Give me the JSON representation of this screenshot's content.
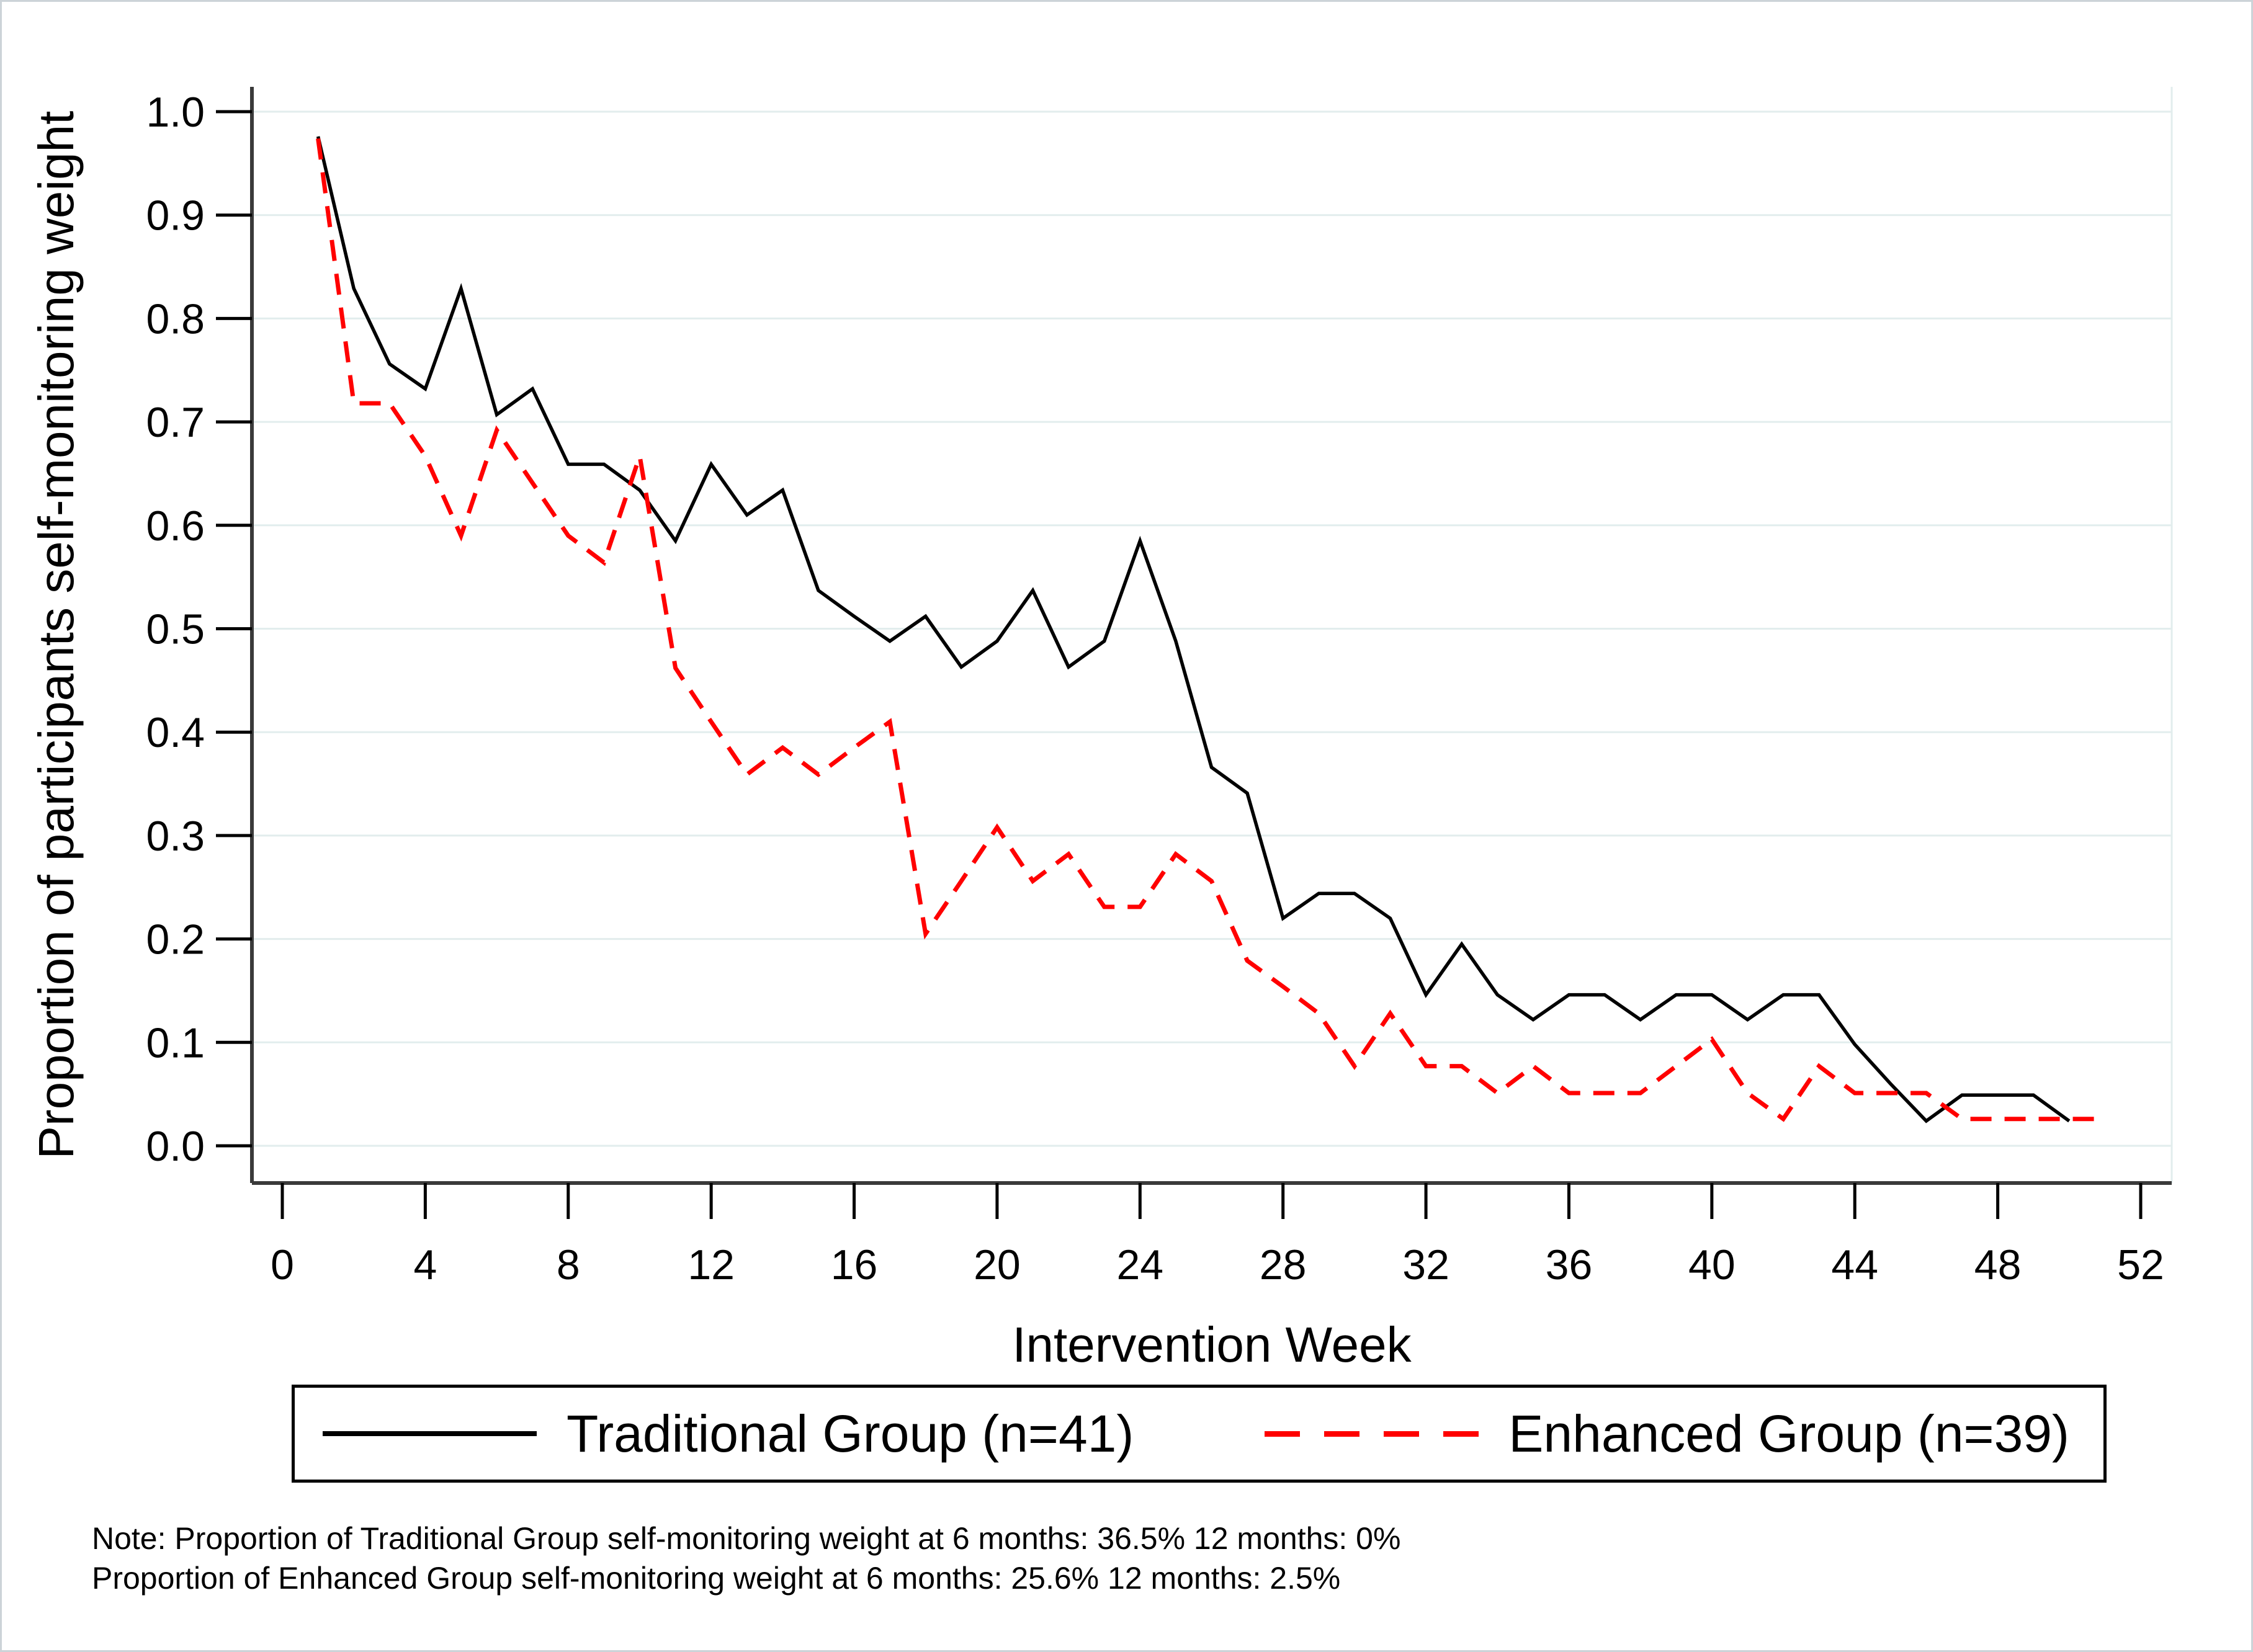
{
  "legend": {
    "items": [
      {
        "label": "Traditional Group (n=41)",
        "style": "solid",
        "color": "#000000"
      },
      {
        "label": "Enhanced Group (n=39)",
        "style": "dashed",
        "color": "#ff0000"
      }
    ]
  },
  "notes": {
    "line1": "Note: Proportion of Traditional Group self-monitoring weight at 6 months: 36.5% 12 months: 0%",
    "line2": "Proportion of Enhanced Group self-monitoring weight at 6 months: 25.6% 12 months: 2.5%"
  },
  "chart_data": {
    "type": "line",
    "title": "",
    "xlabel": "Intervention Week",
    "ylabel": "Proportion of participants self-monitoring weight",
    "xlim": [
      0,
      52
    ],
    "ylim": [
      0.0,
      1.0
    ],
    "x_ticks": [
      0,
      4,
      8,
      12,
      16,
      20,
      24,
      28,
      32,
      36,
      40,
      44,
      48,
      52
    ],
    "y_ticks": [
      "0.0",
      "0.1",
      "0.2",
      "0.3",
      "0.4",
      "0.5",
      "0.6",
      "0.7",
      "0.8",
      "0.9",
      "1.0"
    ],
    "grid": true,
    "grid_color": "#e2eded",
    "axis_color": "#3a3a3a",
    "legend_position": "bottom",
    "series": [
      {
        "name": "Traditional Group (n=41)",
        "color": "#000000",
        "dash": "solid",
        "x": [
          1,
          2,
          3,
          4,
          5,
          6,
          7,
          8,
          9,
          10,
          11,
          12,
          13,
          14,
          15,
          16,
          17,
          18,
          19,
          20,
          21,
          22,
          23,
          24,
          25,
          26,
          27,
          28,
          29,
          30,
          31,
          32,
          33,
          34,
          35,
          36,
          37,
          38,
          39,
          40,
          41,
          42,
          43,
          44,
          45,
          46,
          47,
          48,
          49,
          50
        ],
        "y": [
          0.976,
          0.829,
          0.756,
          0.732,
          0.829,
          0.707,
          0.732,
          0.659,
          0.659,
          0.634,
          0.585,
          0.659,
          0.61,
          0.634,
          0.537,
          0.512,
          0.488,
          0.512,
          0.463,
          0.488,
          0.537,
          0.463,
          0.488,
          0.585,
          0.488,
          0.366,
          0.341,
          0.22,
          0.244,
          0.244,
          0.22,
          0.146,
          0.195,
          0.146,
          0.122,
          0.146,
          0.146,
          0.122,
          0.146,
          0.146,
          0.122,
          0.146,
          0.146,
          0.098,
          0.06,
          0.024,
          0.049,
          0.049,
          0.049,
          0.024
        ]
      },
      {
        "name": "Enhanced Group (n=39)",
        "color": "#ff0000",
        "dash": "dashed",
        "x": [
          1,
          2,
          3,
          4,
          5,
          6,
          7,
          8,
          9,
          10,
          11,
          12,
          13,
          14,
          15,
          16,
          17,
          18,
          19,
          20,
          21,
          22,
          23,
          24,
          25,
          26,
          27,
          28,
          29,
          30,
          31,
          32,
          33,
          34,
          35,
          36,
          37,
          38,
          39,
          40,
          41,
          42,
          43,
          44,
          45,
          46,
          47,
          48,
          49,
          50,
          51
        ],
        "y": [
          0.974,
          0.718,
          0.718,
          0.667,
          0.59,
          0.692,
          0.641,
          0.59,
          0.564,
          0.667,
          0.462,
          0.41,
          0.359,
          0.385,
          0.359,
          0.385,
          0.41,
          0.205,
          0.256,
          0.308,
          0.256,
          0.282,
          0.231,
          0.231,
          0.282,
          0.256,
          0.179,
          0.154,
          0.128,
          0.077,
          0.128,
          0.077,
          0.077,
          0.051,
          0.077,
          0.051,
          0.051,
          0.051,
          0.077,
          0.103,
          0.051,
          0.026,
          0.077,
          0.051,
          0.051,
          0.051,
          0.026,
          0.026,
          0.026,
          0.026,
          0.026
        ]
      }
    ]
  }
}
